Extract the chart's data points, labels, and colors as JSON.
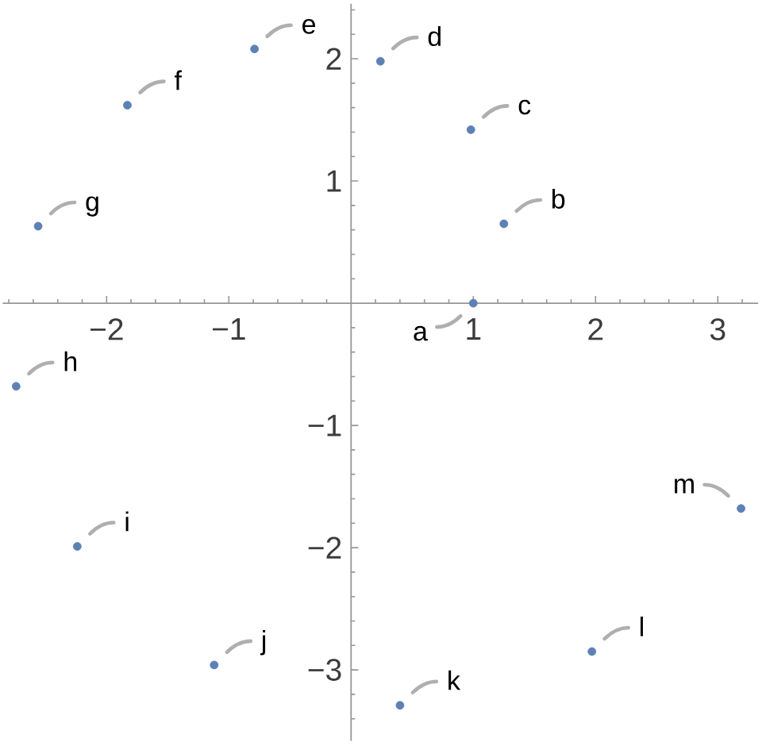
{
  "chart_data": {
    "type": "scatter",
    "x": [
      1,
      1.25,
      0.98,
      0.24,
      -0.79,
      -1.83,
      -2.56,
      -2.74,
      -2.24,
      -1.12,
      0.4,
      1.97,
      3.19
    ],
    "values": [
      0,
      0.65,
      1.42,
      1.98,
      2.08,
      1.62,
      0.63,
      -0.68,
      -1.99,
      -2.96,
      -3.29,
      -2.85,
      -1.68
    ],
    "color": "#5e81b5",
    "marker": "circle",
    "xlim": [
      -2.85,
      3.33
    ],
    "ylim": [
      -3.58,
      2.45
    ],
    "xticks": [
      {
        "value": -2.8,
        "label": null
      },
      {
        "value": -2.6,
        "label": null
      },
      {
        "value": -2.4,
        "label": null
      },
      {
        "value": -2.2,
        "label": null
      },
      {
        "value": -2,
        "label": "−2"
      },
      {
        "value": -1.8,
        "label": null
      },
      {
        "value": -1.6,
        "label": null
      },
      {
        "value": -1.4,
        "label": null
      },
      {
        "value": -1.2,
        "label": null
      },
      {
        "value": -1,
        "label": "−1"
      },
      {
        "value": -0.8,
        "label": null
      },
      {
        "value": -0.6,
        "label": null
      },
      {
        "value": -0.4,
        "label": null
      },
      {
        "value": -0.2,
        "label": null
      },
      {
        "value": 0.2,
        "label": null
      },
      {
        "value": 0.4,
        "label": null
      },
      {
        "value": 0.6,
        "label": null
      },
      {
        "value": 0.8,
        "label": null
      },
      1,
      {
        "value": 1.2,
        "label": null
      },
      {
        "value": 1.4,
        "label": null
      },
      {
        "value": 1.6,
        "label": null
      },
      {
        "value": 1.8,
        "label": null
      },
      2,
      {
        "value": 2.2,
        "label": null
      },
      {
        "value": 2.4,
        "label": null
      },
      {
        "value": 2.6,
        "label": null
      },
      {
        "value": 2.8,
        "label": null
      },
      3,
      {
        "value": 3.2,
        "label": null
      }
    ],
    "yticks": [
      {
        "value": -3.4,
        "label": null
      },
      {
        "value": -3.2,
        "label": null
      },
      {
        "value": -3,
        "label": "−3"
      },
      {
        "value": -2.8,
        "label": null
      },
      {
        "value": -2.6,
        "label": null
      },
      {
        "value": -2.4,
        "label": null
      },
      {
        "value": -2.2,
        "label": null
      },
      {
        "value": -2,
        "label": "−2"
      },
      {
        "value": -1.8,
        "label": null
      },
      {
        "value": -1.6,
        "label": null
      },
      {
        "value": -1.4,
        "label": null
      },
      {
        "value": -1.2,
        "label": null
      },
      {
        "value": -1,
        "label": "−1"
      },
      {
        "value": -0.8,
        "label": null
      },
      {
        "value": -0.6,
        "label": null
      },
      {
        "value": -0.4,
        "label": null
      },
      {
        "value": -0.2,
        "label": null
      },
      {
        "value": 0.2,
        "label": null
      },
      {
        "value": 0.4,
        "label": null
      },
      {
        "value": 0.6,
        "label": null
      },
      {
        "value": 0.8,
        "label": null
      },
      1,
      {
        "value": 1.2,
        "label": null
      },
      {
        "value": 1.4,
        "label": null
      },
      {
        "value": 1.6,
        "label": null
      },
      {
        "value": 1.8,
        "label": null
      },
      2,
      {
        "value": 2.2,
        "label": null
      },
      {
        "value": 2.4,
        "label": null
      }
    ],
    "annotations": [
      {
        "text": "a",
        "x": 1,
        "y": 0
      },
      {
        "text": "b",
        "x": 1.25,
        "y": 0.65
      },
      {
        "text": "c",
        "x": 0.98,
        "y": 1.42
      },
      {
        "text": "d",
        "x": 0.24,
        "y": 1.98
      },
      {
        "text": "e",
        "x": -0.79,
        "y": 2.08
      },
      {
        "text": "f",
        "x": -1.83,
        "y": 1.62
      },
      {
        "text": "g",
        "x": -2.56,
        "y": 0.63
      },
      {
        "text": "h",
        "x": -2.74,
        "y": -0.68
      },
      {
        "text": "i",
        "x": -2.24,
        "y": -1.99
      },
      {
        "text": "j",
        "x": -1.12,
        "y": -2.96
      },
      {
        "text": "k",
        "x": 0.4,
        "y": -3.29
      },
      {
        "text": "l",
        "x": 1.97,
        "y": -2.85
      },
      {
        "text": "m",
        "x": 3.19,
        "y": -1.68
      }
    ]
  }
}
